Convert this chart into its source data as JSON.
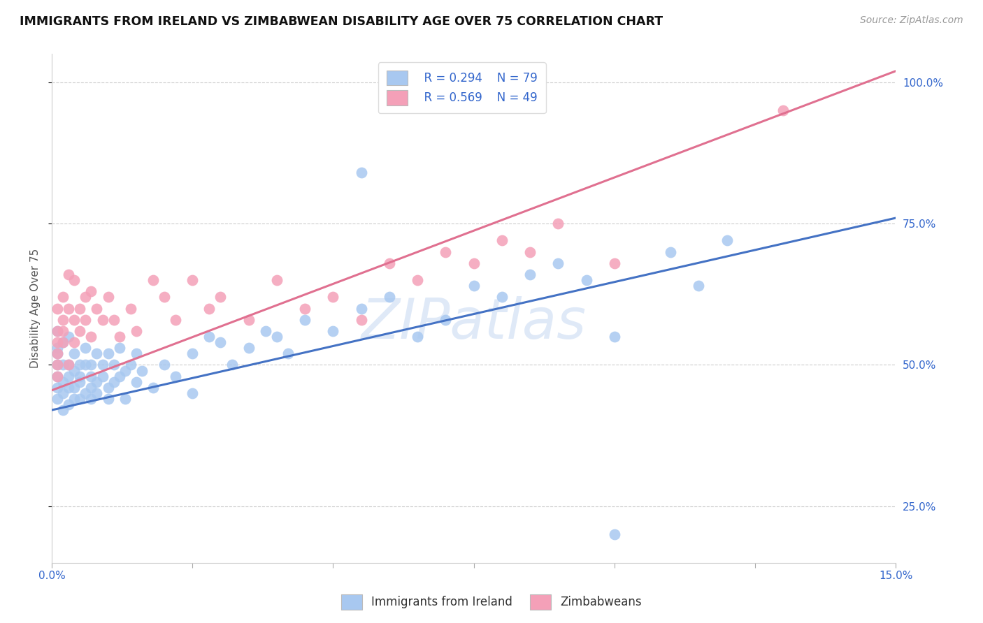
{
  "title": "IMMIGRANTS FROM IRELAND VS ZIMBABWEAN DISABILITY AGE OVER 75 CORRELATION CHART",
  "source": "Source: ZipAtlas.com",
  "ylabel": "Disability Age Over 75",
  "legend_ireland": "Immigrants from Ireland",
  "legend_zimbabwe": "Zimbabweans",
  "r_ireland": "R = 0.294",
  "n_ireland": "N = 79",
  "r_zimbabwe": "R = 0.569",
  "n_zimbabwe": "N = 49",
  "color_ireland": "#A8C8F0",
  "color_zimbabwe": "#F4A0B8",
  "line_color_ireland": "#4472C4",
  "line_color_zimbabwe": "#E07090",
  "watermark": "ZIPatlas",
  "xmin": 0.0,
  "xmax": 0.15,
  "ymin": 0.15,
  "ymax": 1.05,
  "yticks": [
    0.25,
    0.5,
    0.75,
    1.0
  ],
  "xtick_positions": [
    0.0,
    0.025,
    0.05,
    0.075,
    0.1,
    0.125,
    0.15
  ],
  "xtick_labels": [
    "0.0%",
    "",
    "",
    "",
    "",
    "",
    "15.0%"
  ],
  "ireland_line_x": [
    0.0,
    0.15
  ],
  "ireland_line_y": [
    0.42,
    0.76
  ],
  "zimbabwe_line_x": [
    0.0,
    0.15
  ],
  "zimbabwe_line_y": [
    0.455,
    1.02
  ],
  "ireland_x": [
    0.001,
    0.001,
    0.001,
    0.001,
    0.001,
    0.001,
    0.001,
    0.002,
    0.002,
    0.002,
    0.002,
    0.002,
    0.003,
    0.003,
    0.003,
    0.003,
    0.003,
    0.004,
    0.004,
    0.004,
    0.004,
    0.005,
    0.005,
    0.005,
    0.005,
    0.006,
    0.006,
    0.006,
    0.007,
    0.007,
    0.007,
    0.007,
    0.008,
    0.008,
    0.008,
    0.009,
    0.009,
    0.01,
    0.01,
    0.01,
    0.011,
    0.011,
    0.012,
    0.012,
    0.013,
    0.013,
    0.014,
    0.015,
    0.015,
    0.016,
    0.018,
    0.02,
    0.022,
    0.025,
    0.025,
    0.028,
    0.03,
    0.032,
    0.035,
    0.038,
    0.04,
    0.042,
    0.045,
    0.05,
    0.055,
    0.06,
    0.065,
    0.07,
    0.075,
    0.08,
    0.085,
    0.09,
    0.095,
    0.1,
    0.11,
    0.115,
    0.12,
    0.1,
    0.055
  ],
  "ireland_y": [
    0.48,
    0.46,
    0.52,
    0.44,
    0.5,
    0.56,
    0.53,
    0.47,
    0.45,
    0.5,
    0.54,
    0.42,
    0.5,
    0.46,
    0.55,
    0.43,
    0.48,
    0.49,
    0.44,
    0.52,
    0.46,
    0.48,
    0.44,
    0.5,
    0.47,
    0.45,
    0.5,
    0.53,
    0.48,
    0.44,
    0.5,
    0.46,
    0.47,
    0.52,
    0.45,
    0.48,
    0.5,
    0.46,
    0.52,
    0.44,
    0.5,
    0.47,
    0.48,
    0.53,
    0.49,
    0.44,
    0.5,
    0.47,
    0.52,
    0.49,
    0.46,
    0.5,
    0.48,
    0.52,
    0.45,
    0.55,
    0.54,
    0.5,
    0.53,
    0.56,
    0.55,
    0.52,
    0.58,
    0.56,
    0.6,
    0.62,
    0.55,
    0.58,
    0.64,
    0.62,
    0.66,
    0.68,
    0.65,
    0.55,
    0.7,
    0.64,
    0.72,
    0.2,
    0.84
  ],
  "zimbabwe_x": [
    0.001,
    0.001,
    0.001,
    0.001,
    0.001,
    0.001,
    0.002,
    0.002,
    0.002,
    0.002,
    0.003,
    0.003,
    0.003,
    0.004,
    0.004,
    0.004,
    0.005,
    0.005,
    0.006,
    0.006,
    0.007,
    0.007,
    0.008,
    0.009,
    0.01,
    0.011,
    0.012,
    0.014,
    0.015,
    0.018,
    0.02,
    0.022,
    0.025,
    0.028,
    0.03,
    0.035,
    0.04,
    0.045,
    0.05,
    0.055,
    0.06,
    0.065,
    0.07,
    0.075,
    0.08,
    0.085,
    0.09,
    0.1,
    0.13
  ],
  "zimbabwe_y": [
    0.52,
    0.56,
    0.48,
    0.54,
    0.6,
    0.5,
    0.58,
    0.54,
    0.62,
    0.56,
    0.5,
    0.6,
    0.66,
    0.58,
    0.54,
    0.65,
    0.6,
    0.56,
    0.62,
    0.58,
    0.55,
    0.63,
    0.6,
    0.58,
    0.62,
    0.58,
    0.55,
    0.6,
    0.56,
    0.65,
    0.62,
    0.58,
    0.65,
    0.6,
    0.62,
    0.58,
    0.65,
    0.6,
    0.62,
    0.58,
    0.68,
    0.65,
    0.7,
    0.68,
    0.72,
    0.7,
    0.75,
    0.68,
    0.95
  ]
}
